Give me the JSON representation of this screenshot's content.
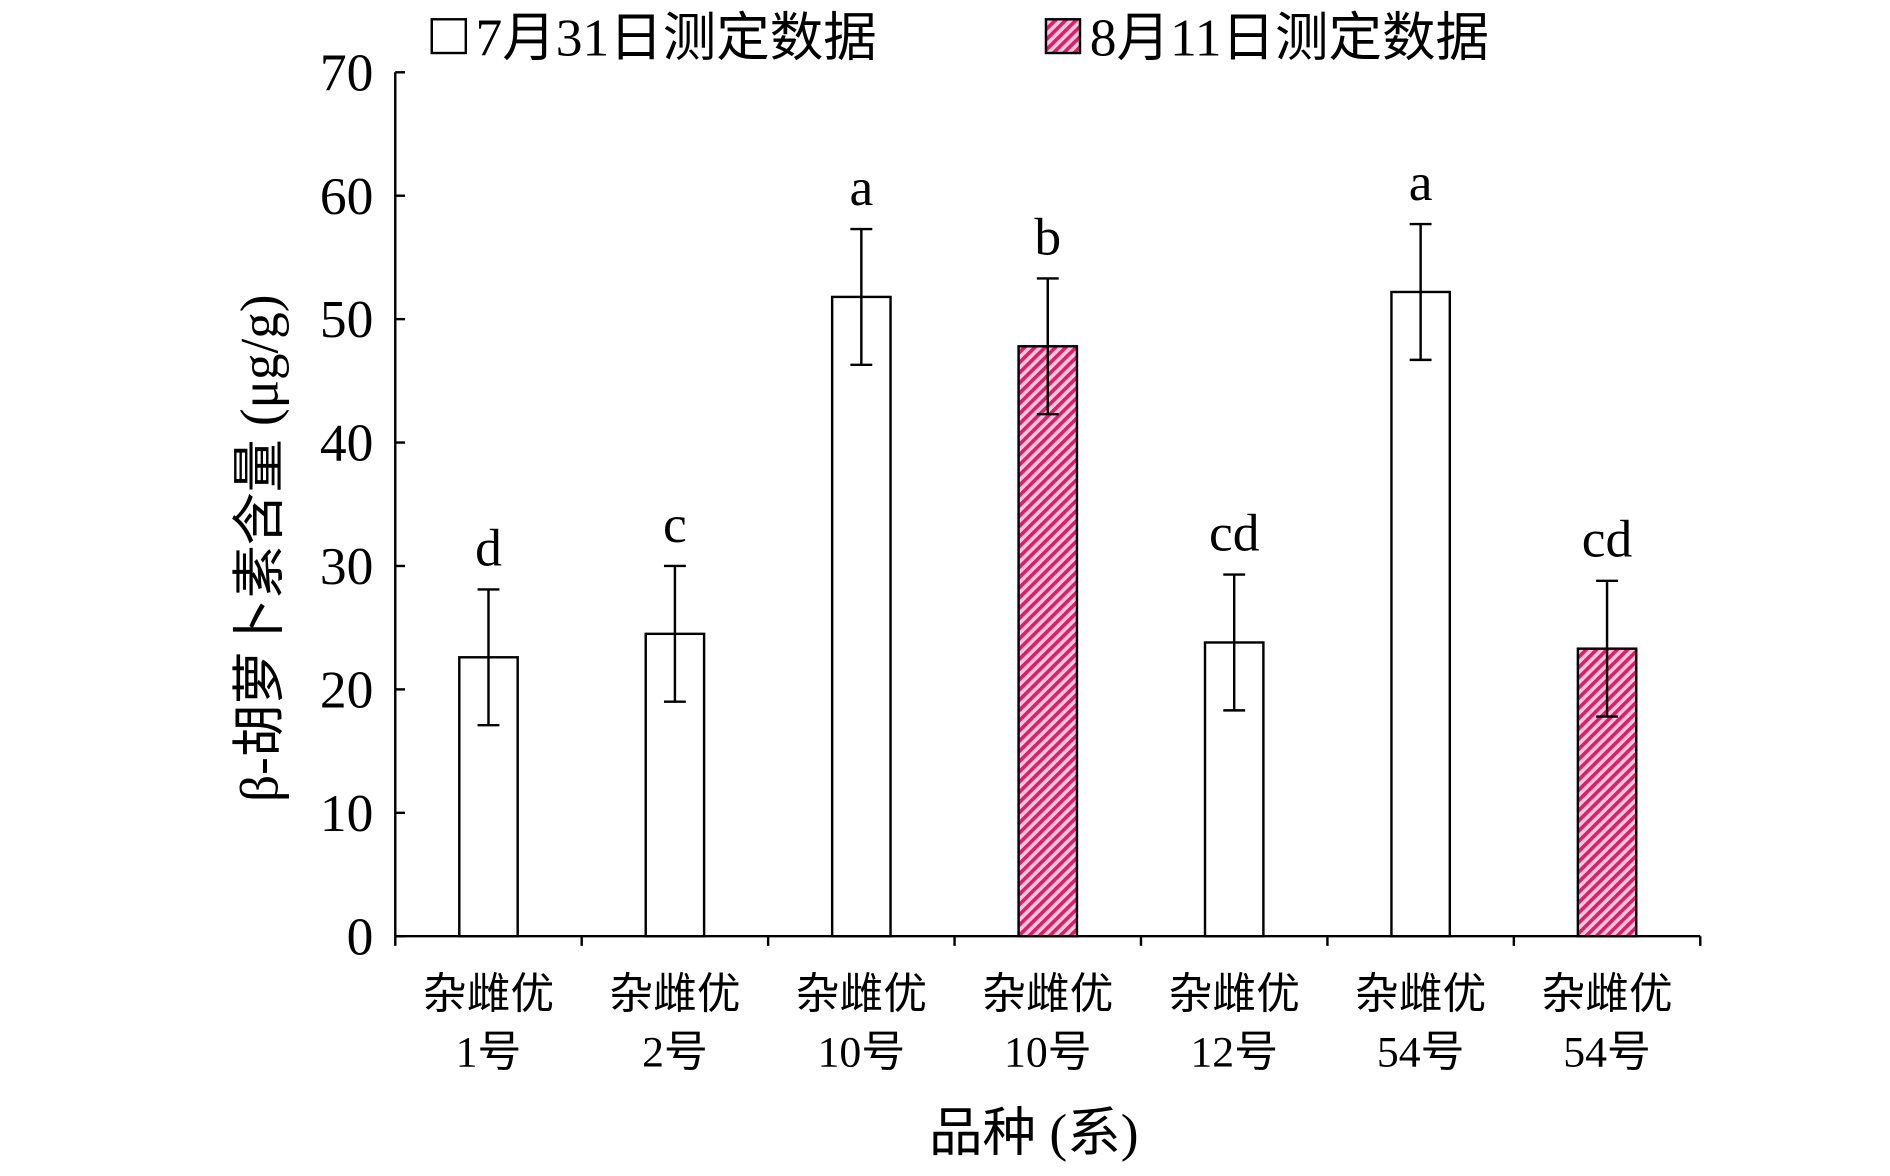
{
  "chart_data": {
    "type": "bar",
    "y_label": "β-胡萝卜素含量 (μg/g)",
    "x_label": "品种 (系)",
    "categories": [
      [
        "杂雌优",
        "1号"
      ],
      [
        "杂雌优",
        "2号"
      ],
      [
        "杂雌优",
        "10号"
      ],
      [
        "杂雌优",
        "10号"
      ],
      [
        "杂雌优",
        "12号"
      ],
      [
        "杂雌优",
        "54号"
      ],
      [
        "杂雌优",
        "54号"
      ]
    ],
    "series": [
      {
        "name": "7月31日测定数据",
        "color": "#ffffff",
        "values": [
          22.6,
          24.5,
          51.8,
          null,
          23.8,
          52.2,
          null
        ],
        "errors": [
          5.5,
          5.5,
          5.5,
          null,
          5.5,
          5.5,
          null
        ]
      },
      {
        "name": "8月11日测定数据",
        "color": "#e0307a",
        "pattern": "hatch",
        "values": [
          null,
          null,
          null,
          47.8,
          null,
          null,
          23.3
        ],
        "errors": [
          null,
          null,
          null,
          5.5,
          null,
          null,
          5.5
        ]
      }
    ],
    "annotations": [
      "d",
      "c",
      "a",
      "b",
      "cd",
      "a",
      "cd"
    ],
    "ylim": [
      0,
      70
    ],
    "yticks": [
      0,
      10,
      20,
      30,
      40,
      50,
      60,
      70
    ]
  }
}
